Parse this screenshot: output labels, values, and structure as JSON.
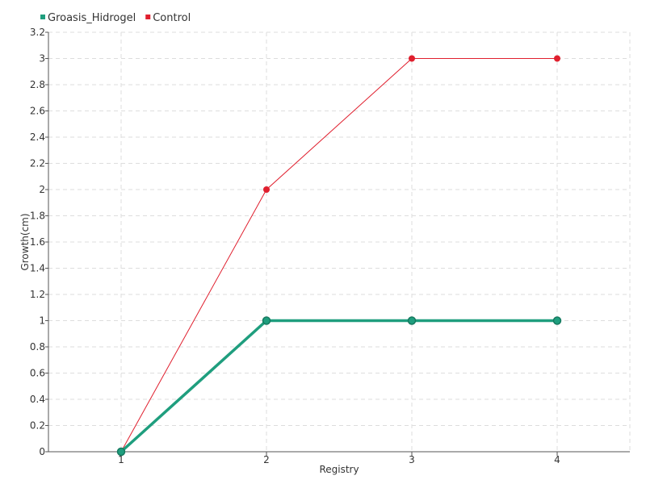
{
  "chart_data": {
    "type": "line",
    "title": "",
    "xlabel": "Registry",
    "ylabel": "Growth(cm)",
    "categories": [
      "1",
      "2",
      "3",
      "4"
    ],
    "ylim": [
      0,
      3.2
    ],
    "y_ticks": [
      0,
      0.2,
      0.4,
      0.6,
      0.8,
      1,
      1.2,
      1.4,
      1.6,
      1.8,
      2,
      2.2,
      2.4,
      2.6,
      2.8,
      3,
      3.2
    ],
    "y_tick_labels": [
      "0",
      "0.2",
      "0.4",
      "0.6",
      "0.8",
      "1",
      "1.2",
      "1.4",
      "1.6",
      "1.8",
      "2",
      "2.2",
      "2.4",
      "2.6",
      "2.8",
      "3",
      "3.2"
    ],
    "grid": true,
    "legend_position": "top-left",
    "series": [
      {
        "name": "Groasis_Hidrogel",
        "color": "#1f9e7e",
        "values": [
          0,
          1,
          1,
          1
        ]
      },
      {
        "name": "Control",
        "color": "#e01f2e",
        "values": [
          0,
          2,
          3,
          3
        ]
      }
    ]
  }
}
